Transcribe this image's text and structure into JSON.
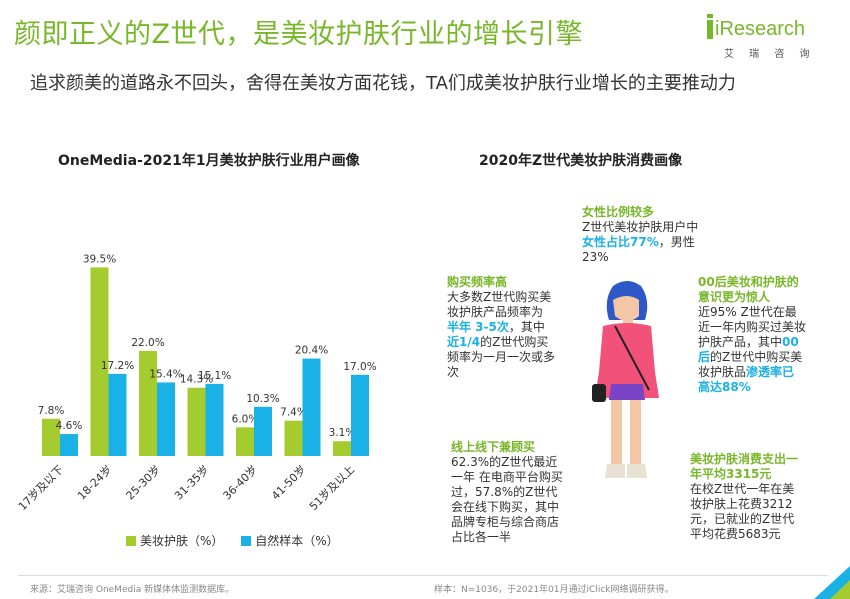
{
  "title": "颜即正义的Z世代，是美妆护肤行业的增长引擎",
  "logo": {
    "text": "iResearch",
    "sub": "艾 瑞 咨 询"
  },
  "subtitle": "追求颜美的道路永不回头，舍得在美妆方面花钱，TA们成美妆护肤行业增长的主要推动力",
  "left_title": "OneMedia-2021年1月美妆护肤行业用户画像",
  "right_title": "2020年Z世代美妆护肤消费画像",
  "colors": {
    "green": "#a5cc2e",
    "blue": "#1ab1e6",
    "title_green": "#78b72a"
  },
  "chart_data": {
    "type": "bar",
    "categories": [
      "17岁及以下",
      "18-24岁",
      "25-30岁",
      "31-35岁",
      "36-40岁",
      "41-50岁",
      "51岁及以上"
    ],
    "series": [
      {
        "name": "美妆护肤（%）",
        "values": [
          7.8,
          39.5,
          22.0,
          14.3,
          6.0,
          7.4,
          3.1
        ],
        "color": "#a5cc2e"
      },
      {
        "name": "自然样本（%）",
        "values": [
          4.6,
          17.2,
          15.4,
          15.1,
          10.3,
          20.4,
          17.0
        ],
        "color": "#1ab1e6"
      }
    ],
    "value_labels": [
      [
        "7.8%",
        "39.5%",
        "22.0%",
        "14.3%",
        "6.0%",
        "7.4%",
        "3.1%"
      ],
      [
        "4.6%",
        "17.2%",
        "15.4%",
        "15.1%",
        "10.3%",
        "20.4%",
        "17.0%"
      ]
    ],
    "ylim": [
      0,
      40
    ],
    "grid": false,
    "legend": "bottom"
  },
  "notes": {
    "female": {
      "head": "女性比例较多",
      "t1": "Z世代美妆护肤用户中",
      "hl": "女性占比77%",
      "t2": "，男性23%"
    },
    "freq": {
      "head": "购买频率高",
      "t1": "大多数Z世代购买美妆护肤产品频率为",
      "hl1": "半年 3-5次",
      "t2": "，其中",
      "hl2": "近1/4",
      "t3": "的Z世代购买频率为一月一次或多次"
    },
    "online": {
      "head": "线上线下兼顾买",
      "t1": "62.3%的Z世代最近一年 在电商平台购买过，57.8%的Z世代会在线下购买，其中品牌专柜与综合商店占比各一半"
    },
    "gen00": {
      "head": "00后美妆和护肤的意识更为惊人",
      "t1": "近95% Z世代在最近一年内购买过美妆护肤产品，其中",
      "hl1": "00后",
      "t2": "的Z世代中购买美妆护肤品",
      "hl2": "渗透率已高达88%"
    },
    "spend": {
      "head": "美妆护肤消费支出一年平均3315元",
      "t1": "在校Z世代一年在美妆护肤上花费3212元，已就业的Z世代平均花费5683元"
    }
  },
  "source": "来源：艾瑞咨询 OneMedia 新媒体体监测数据库。",
  "sample": "样本：N=1036，于2021年01月通过iClick网络调研获得。"
}
